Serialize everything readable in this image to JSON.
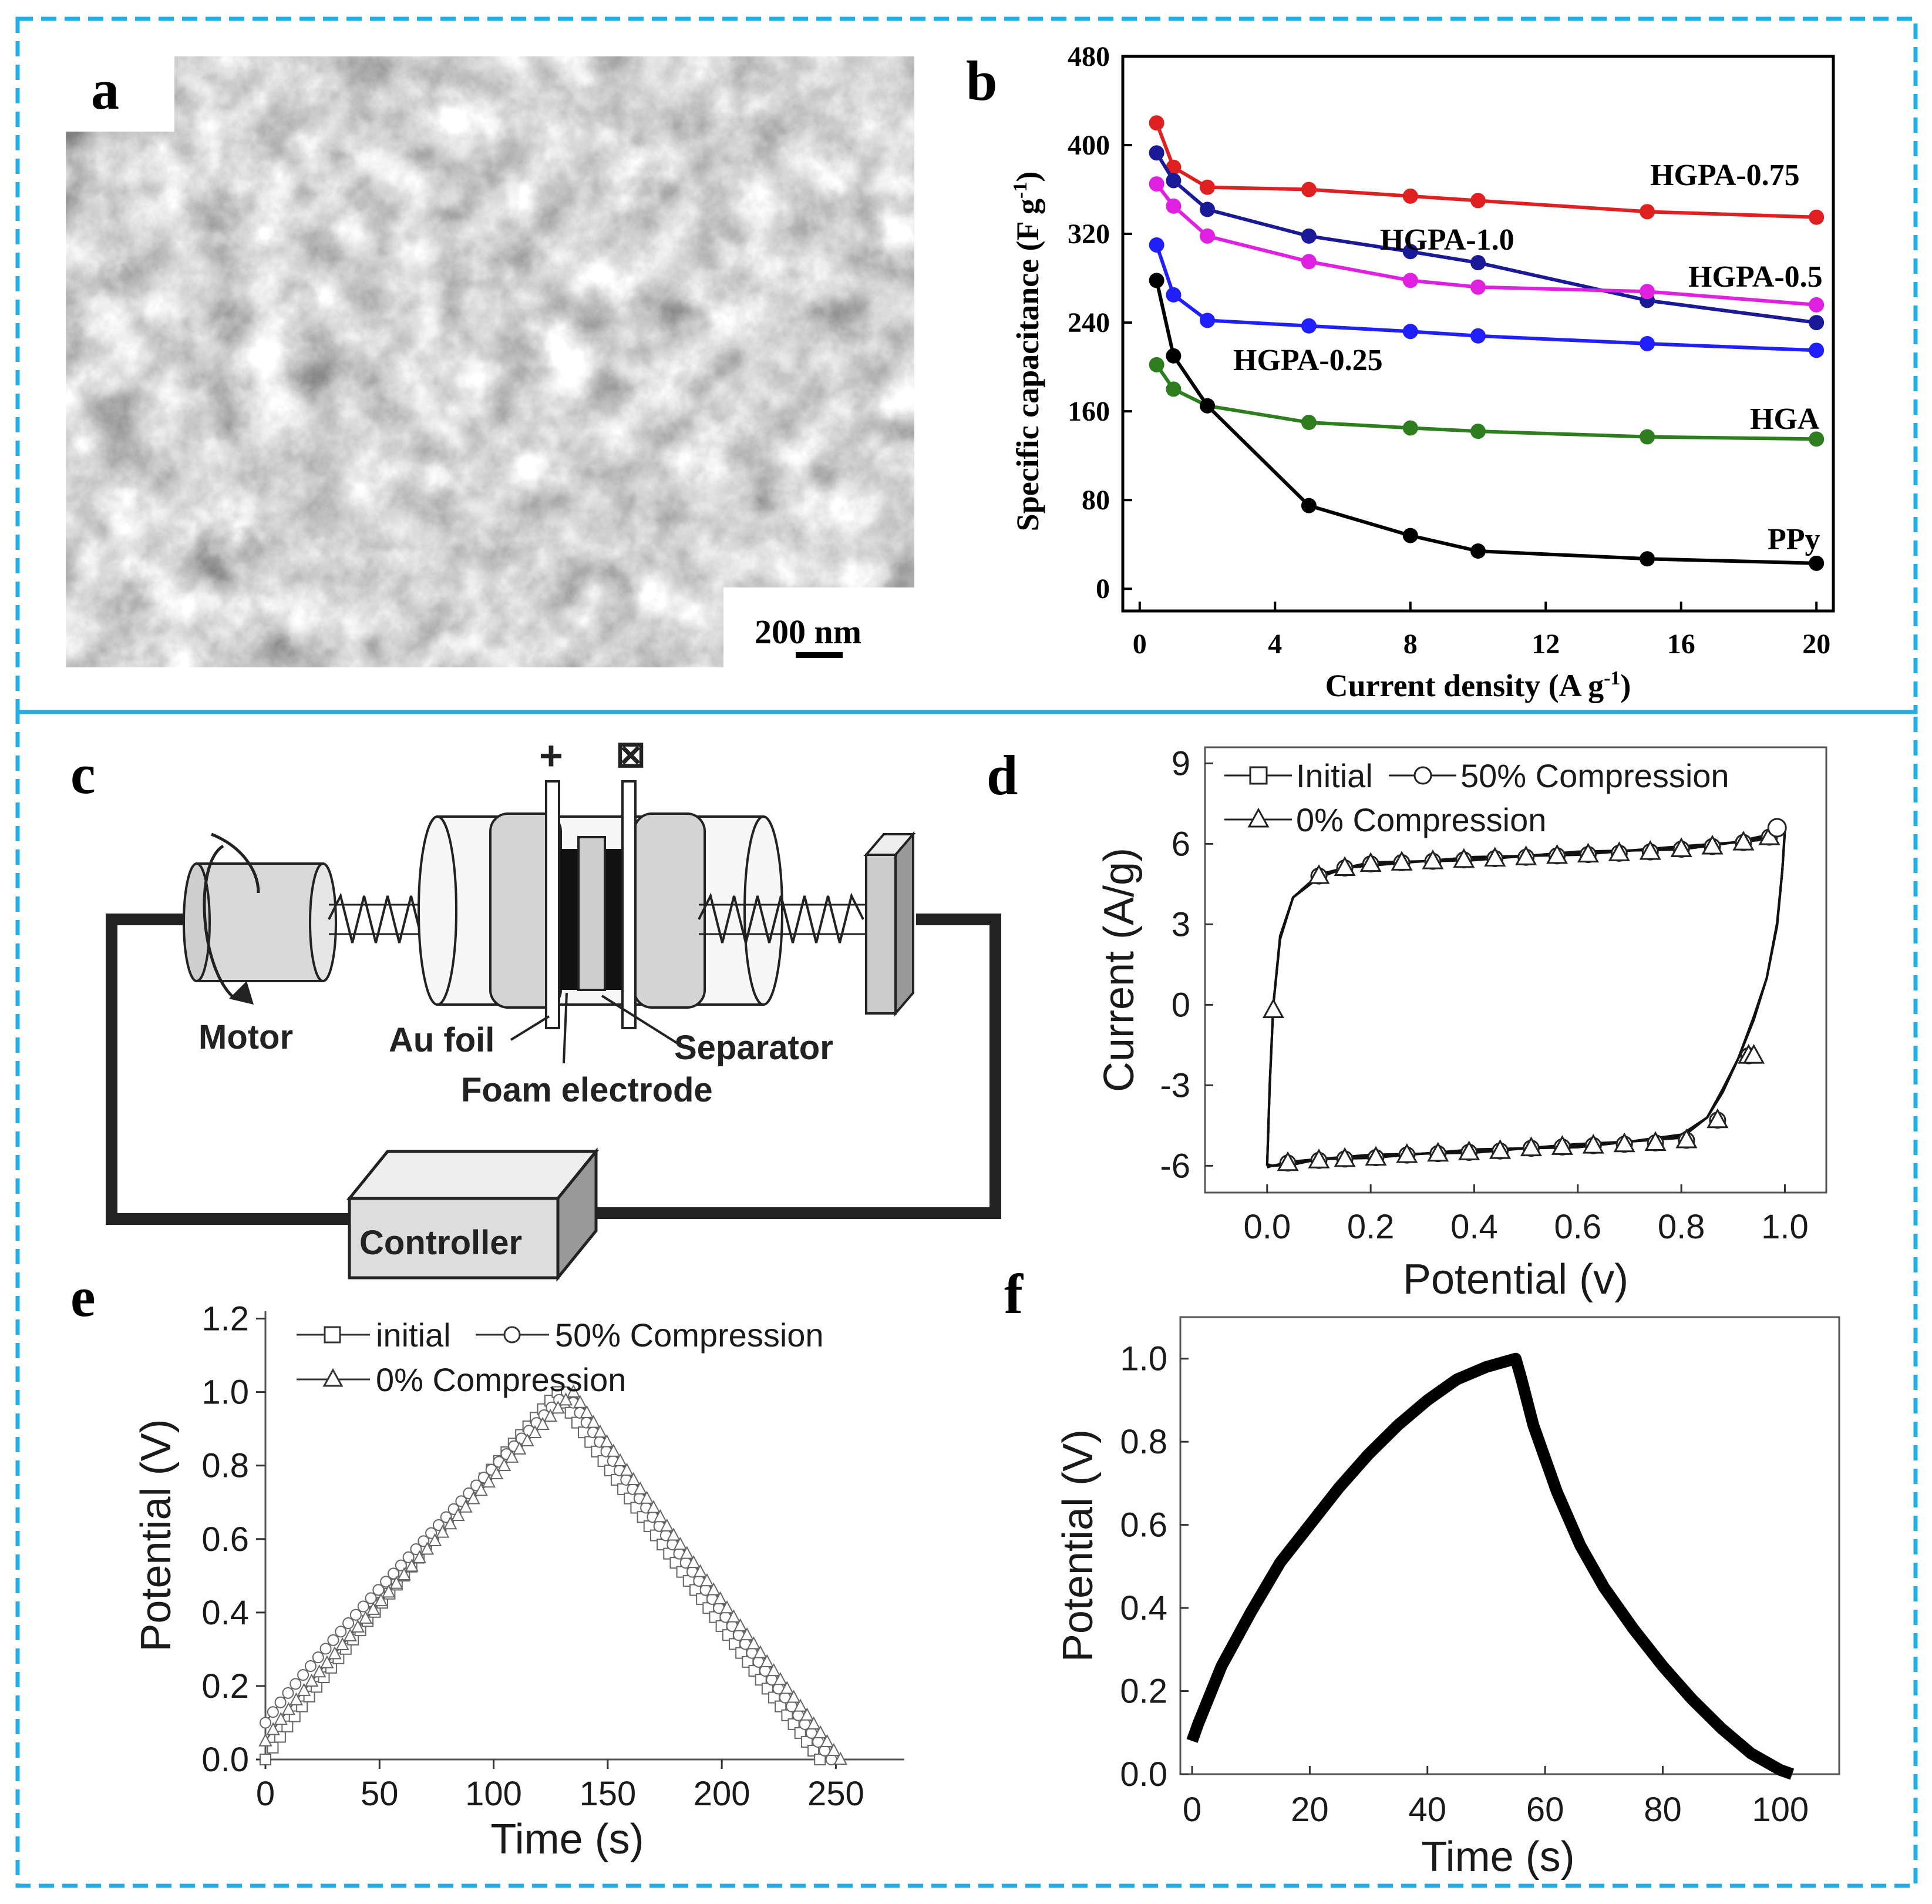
{
  "panels": {
    "a": {
      "letter": "a",
      "scale_bar": "200 nm"
    },
    "b": {
      "letter": "b"
    },
    "c": {
      "letter": "c",
      "labels": {
        "motor": "Motor",
        "au_foil": "Au foil",
        "foam": "Foam electrode",
        "separator": "Separator",
        "controller": "Controller",
        "plus": "+",
        "minus": "⊠"
      }
    },
    "d": {
      "letter": "d"
    },
    "e": {
      "letter": "e"
    },
    "f": {
      "letter": "f"
    }
  },
  "chart_data": [
    {
      "id": "b",
      "type": "line",
      "title": "",
      "xlabel": "Current density (A g",
      "xlabel_sup": "-1",
      "xlabel_end": ")",
      "ylabel": "Specific capacitance (F g",
      "ylabel_sup": "-1",
      "ylabel_end": ")",
      "xlim": [
        -0.5,
        20.5
      ],
      "ylim": [
        -20,
        480
      ],
      "xticks": [
        "0",
        "4",
        "8",
        "12",
        "16",
        "20"
      ],
      "yticks": [
        "0",
        "80",
        "160",
        "240",
        "320",
        "400",
        "480"
      ],
      "x": [
        0.5,
        1,
        2,
        5,
        8,
        10,
        15,
        20
      ],
      "series": [
        {
          "name": "HGPA-0.75",
          "color": "#e02020",
          "values": [
            420,
            380,
            362,
            360,
            354,
            350,
            340,
            335
          ]
        },
        {
          "name": "HGPA-1.0",
          "color": "#1a1a99",
          "values": [
            393,
            368,
            342,
            318,
            304,
            294,
            260,
            240
          ]
        },
        {
          "name": "HGPA-0.5",
          "color": "#e020e0",
          "values": [
            365,
            345,
            318,
            295,
            278,
            272,
            268,
            256
          ]
        },
        {
          "name": "HGPA-0.25",
          "color": "#1f1fff",
          "values": [
            310,
            265,
            242,
            237,
            232,
            228,
            221,
            215
          ]
        },
        {
          "name": "HGA",
          "color": "#2e7d1f",
          "values": [
            202,
            180,
            165,
            150,
            145,
            142,
            137,
            135
          ]
        },
        {
          "name": "PPy",
          "color": "#000000",
          "values": [
            278,
            210,
            165,
            75,
            48,
            34,
            27,
            23
          ]
        }
      ]
    },
    {
      "id": "d",
      "type": "line",
      "xlabel": "Potential (v)",
      "ylabel": "Current (A/g)",
      "xlim": [
        -0.12,
        1.08
      ],
      "ylim": [
        -7,
        9.6
      ],
      "xticks": [
        "0.0",
        "0.2",
        "0.4",
        "0.6",
        "0.8",
        "1.0"
      ],
      "yticks": [
        "-6",
        "-3",
        "0",
        "3",
        "6",
        "9"
      ],
      "legend": [
        "Initial",
        "50% Compression",
        "0% Compression"
      ],
      "loop_x": [
        0.0,
        0.005,
        0.012,
        0.025,
        0.05,
        0.1,
        0.15,
        0.2,
        0.3,
        0.4,
        0.5,
        0.6,
        0.7,
        0.8,
        0.9,
        0.95,
        0.98,
        1.0,
        0.995,
        0.985,
        0.965,
        0.94,
        0.91,
        0.88,
        0.85,
        0.8,
        0.7,
        0.6,
        0.5,
        0.4,
        0.3,
        0.2,
        0.1,
        0.05,
        0.01,
        0.0
      ],
      "loop_y": [
        -6.0,
        -3.0,
        0.0,
        2.5,
        4.0,
        4.8,
        5.1,
        5.25,
        5.35,
        5.45,
        5.55,
        5.65,
        5.75,
        5.85,
        6.05,
        6.2,
        6.4,
        6.5,
        5.0,
        3.0,
        1.0,
        -0.5,
        -2.0,
        -3.2,
        -4.2,
        -4.9,
        -5.1,
        -5.25,
        -5.35,
        -5.45,
        -5.55,
        -5.65,
        -5.75,
        -5.9,
        -6.0,
        -6.0
      ],
      "markers_top_x": [
        0.1,
        0.15,
        0.2,
        0.26,
        0.32,
        0.38,
        0.44,
        0.5,
        0.56,
        0.62,
        0.68,
        0.74,
        0.8,
        0.86,
        0.92,
        0.97
      ],
      "markers_top_y": [
        4.8,
        5.1,
        5.25,
        5.3,
        5.35,
        5.4,
        5.45,
        5.5,
        5.55,
        5.6,
        5.65,
        5.7,
        5.8,
        5.9,
        6.05,
        6.25
      ],
      "markers_bottom_x": [
        0.04,
        0.1,
        0.15,
        0.21,
        0.27,
        0.33,
        0.39,
        0.45,
        0.51,
        0.57,
        0.63,
        0.69,
        0.75,
        0.81,
        0.87,
        0.93
      ],
      "markers_bottom_y": [
        -5.9,
        -5.8,
        -5.75,
        -5.7,
        -5.6,
        -5.55,
        -5.5,
        -5.45,
        -5.35,
        -5.3,
        -5.25,
        -5.2,
        -5.15,
        -5.05,
        -4.3,
        -1.9
      ],
      "markers_side_x": [
        0.012,
        0.94
      ],
      "markers_side_y": [
        -0.2,
        -1.9
      ],
      "end_circle_x": 0.985,
      "end_circle_y": 6.6
    },
    {
      "id": "e",
      "type": "line",
      "xlabel": "Time (s)",
      "ylabel": "Potential (V)",
      "xlim": [
        0,
        280
      ],
      "ylim": [
        0,
        1.22
      ],
      "xticks": [
        "0",
        "50",
        "100",
        "150",
        "200",
        "250"
      ],
      "yticks": [
        "0.0",
        "0.2",
        "0.4",
        "0.6",
        "0.8",
        "1.0",
        "1.2"
      ],
      "legend": [
        "initial",
        "50% Compression",
        "0% Compression"
      ],
      "series": [
        {
          "name": "initial",
          "peak_t": 128,
          "end_t": 243,
          "start_v": 0.0
        },
        {
          "name": "50% Compression",
          "peak_t": 132,
          "end_t": 248,
          "start_v": 0.1
        },
        {
          "name": "0% Compression",
          "peak_t": 135,
          "end_t": 252,
          "start_v": 0.05
        }
      ],
      "peak_v": 1.0
    },
    {
      "id": "f",
      "type": "line",
      "xlabel": "Time (s)",
      "ylabel": "Potential (V)",
      "xlim": [
        -2,
        110
      ],
      "ylim": [
        0,
        1.1
      ],
      "xticks": [
        "0",
        "20",
        "40",
        "60",
        "80",
        "100"
      ],
      "yticks": [
        "0.0",
        "0.2",
        "0.4",
        "0.6",
        "0.8",
        "1.0"
      ],
      "x": [
        0,
        1,
        5,
        10,
        15,
        20,
        25,
        30,
        35,
        40,
        45,
        50,
        55,
        56,
        58,
        62,
        66,
        70,
        75,
        80,
        85,
        90,
        95,
        100,
        102
      ],
      "y": [
        0.08,
        0.12,
        0.26,
        0.39,
        0.51,
        0.6,
        0.69,
        0.77,
        0.84,
        0.9,
        0.95,
        0.98,
        1.0,
        0.95,
        0.84,
        0.68,
        0.55,
        0.45,
        0.35,
        0.26,
        0.18,
        0.11,
        0.05,
        0.01,
        0.0
      ]
    }
  ]
}
